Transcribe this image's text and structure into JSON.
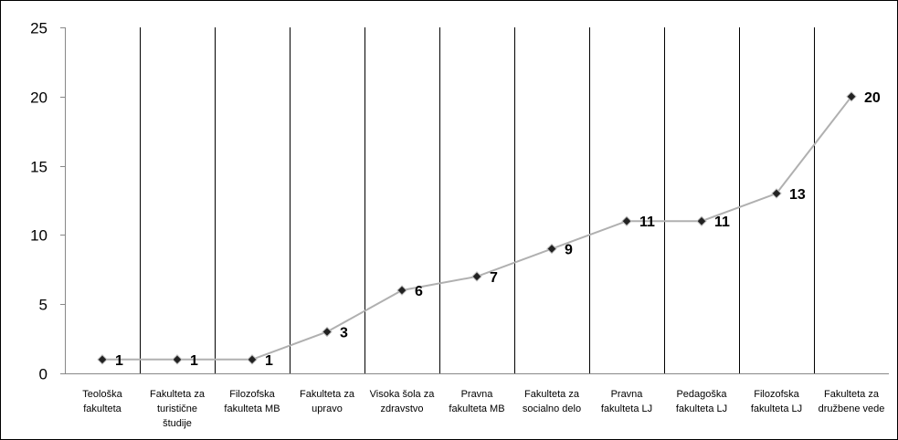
{
  "chart_data": {
    "type": "line",
    "categories": [
      [
        "Teološka",
        "fakulteta"
      ],
      [
        "Fakulteta za",
        "turistične",
        "študije"
      ],
      [
        "Filozofska",
        "fakulteta MB"
      ],
      [
        "Fakulteta za",
        "upravo"
      ],
      [
        "Visoka šola za",
        "zdravstvo"
      ],
      [
        "Pravna",
        "fakulteta MB"
      ],
      [
        "Fakulteta za",
        "socialno delo"
      ],
      [
        "Pravna",
        "fakulteta LJ"
      ],
      [
        "Pedagoška",
        "fakulteta LJ"
      ],
      [
        "Filozofska",
        "fakulteta LJ"
      ],
      [
        "Fakulteta za",
        "družbene vede"
      ]
    ],
    "values": [
      1,
      1,
      1,
      3,
      6,
      7,
      9,
      11,
      11,
      13,
      20
    ],
    "data_labels": [
      "1",
      "1",
      "1",
      "3",
      "6",
      "7",
      "9",
      "11",
      "11",
      "13",
      "20"
    ],
    "ylim": [
      0,
      25
    ],
    "yticks": [
      "0",
      "5",
      "10",
      "15",
      "20",
      "25"
    ],
    "xlabel": "",
    "ylabel": "",
    "title": "",
    "grid": "vertical category separators",
    "colors": {
      "line": "#b0b0b0",
      "marker": "#222222",
      "grid": "#000000",
      "axis": "#888888",
      "frame": "#000000"
    }
  }
}
